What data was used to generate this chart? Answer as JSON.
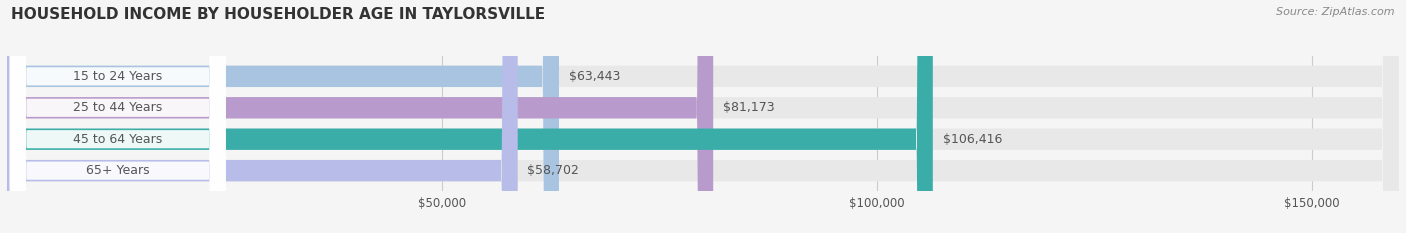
{
  "title": "HOUSEHOLD INCOME BY HOUSEHOLDER AGE IN TAYLORSVILLE",
  "source": "Source: ZipAtlas.com",
  "categories": [
    "15 to 24 Years",
    "25 to 44 Years",
    "45 to 64 Years",
    "65+ Years"
  ],
  "values": [
    63443,
    81173,
    106416,
    58702
  ],
  "bar_colors": [
    "#a8c4e0",
    "#b89acc",
    "#3aada8",
    "#b8bce8"
  ],
  "bar_bg_color": "#e8e8e8",
  "background_color": "#f5f5f5",
  "xlim": [
    0,
    160000
  ],
  "xticks": [
    50000,
    100000,
    150000
  ],
  "xtick_labels": [
    "$50,000",
    "$100,000",
    "$150,000"
  ],
  "label_color": "#555555",
  "title_color": "#333333",
  "value_label_color": "#555555",
  "bar_height": 0.68,
  "figsize": [
    14.06,
    2.33
  ],
  "dpi": 100
}
